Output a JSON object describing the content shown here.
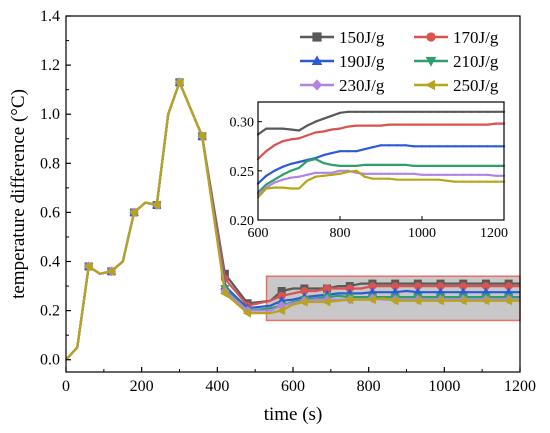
{
  "chart_data": [
    {
      "type": "line",
      "xlabel": "time (s)",
      "ylabel": "temperature difference (°C)",
      "xlim": [
        0,
        1200
      ],
      "ylim": [
        -0.05,
        1.4
      ],
      "xticks": [
        0,
        200,
        400,
        600,
        800,
        1000,
        1200
      ],
      "yticks": [
        0.0,
        0.2,
        0.4,
        0.6,
        0.8,
        1.0,
        1.2,
        1.4
      ],
      "xtick_labels": [
        "0",
        "200",
        "400",
        "600",
        "800",
        "1000",
        "1200"
      ],
      "ytick_labels": [
        "0.0",
        "0.2",
        "0.4",
        "0.6",
        "0.8",
        "1.0",
        "1.2",
        "1.4"
      ],
      "grid": false,
      "legend": "top-right",
      "highlight_region": {
        "x": [
          530,
          1200
        ],
        "y": [
          0.16,
          0.34
        ],
        "color": "#c8c8c8",
        "edge": "#e8706a"
      },
      "x_early": [
        0,
        30,
        60,
        90,
        120,
        150,
        180,
        210,
        240,
        270,
        300,
        360,
        420,
        480
      ],
      "x_late": [
        540,
        570,
        600,
        630,
        660,
        690,
        720,
        750,
        780,
        810,
        840,
        870,
        900,
        930,
        960,
        990,
        1020,
        1050,
        1080,
        1110,
        1140,
        1170,
        1200
      ],
      "series": [
        {
          "name": "150J/g",
          "color": "#595959",
          "marker": "square",
          "early": [
            0,
            0.05,
            0.38,
            0.35,
            0.36,
            0.4,
            0.6,
            0.64,
            0.63,
            1.0,
            1.13,
            0.91,
            0.35,
            0.23
          ],
          "late": [
            0.24,
            0.28,
            0.29,
            0.29,
            0.29,
            0.29,
            0.3,
            0.3,
            0.31,
            0.31,
            0.31,
            0.31,
            0.31,
            0.31,
            0.31,
            0.31,
            0.31,
            0.31,
            0.31,
            0.31,
            0.31,
            0.31,
            0.31
          ]
        },
        {
          "name": "170J/g",
          "color": "#d9534f",
          "marker": "circle",
          "early": [
            0,
            0.05,
            0.38,
            0.35,
            0.36,
            0.4,
            0.6,
            0.64,
            0.63,
            1.0,
            1.13,
            0.91,
            0.33,
            0.22
          ],
          "late": [
            0.24,
            0.26,
            0.27,
            0.28,
            0.28,
            0.29,
            0.29,
            0.29,
            0.29,
            0.3,
            0.3,
            0.3,
            0.3,
            0.3,
            0.3,
            0.3,
            0.3,
            0.3,
            0.3,
            0.3,
            0.3,
            0.3,
            0.3
          ]
        },
        {
          "name": "190J/g",
          "color": "#2a5bd7",
          "marker": "triangle-up",
          "early": [
            0,
            0.05,
            0.38,
            0.35,
            0.36,
            0.4,
            0.6,
            0.64,
            0.63,
            1.0,
            1.13,
            0.91,
            0.3,
            0.21
          ],
          "late": [
            0.22,
            0.24,
            0.245,
            0.255,
            0.26,
            0.265,
            0.27,
            0.27,
            0.27,
            0.275,
            0.275,
            0.275,
            0.28,
            0.275,
            0.275,
            0.275,
            0.275,
            0.275,
            0.275,
            0.275,
            0.275,
            0.275,
            0.275
          ]
        },
        {
          "name": "210J/g",
          "color": "#2e9e6a",
          "marker": "triangle-down",
          "early": [
            0,
            0.05,
            0.38,
            0.35,
            0.36,
            0.4,
            0.6,
            0.64,
            0.63,
            1.0,
            1.13,
            0.91,
            0.29,
            0.2
          ],
          "late": [
            0.21,
            0.22,
            0.235,
            0.245,
            0.25,
            0.255,
            0.26,
            0.255,
            0.255,
            0.255,
            0.255,
            0.255,
            0.255,
            0.255,
            0.255,
            0.255,
            0.255,
            0.255,
            0.255,
            0.255,
            0.255,
            0.255,
            0.255
          ]
        },
        {
          "name": "230J/g",
          "color": "#b184e0",
          "marker": "diamond",
          "early": [
            0,
            0.05,
            0.38,
            0.35,
            0.36,
            0.4,
            0.6,
            0.64,
            0.63,
            1.0,
            1.13,
            0.91,
            0.28,
            0.2
          ],
          "late": [
            0.2,
            0.22,
            0.23,
            0.24,
            0.245,
            0.245,
            0.245,
            0.245,
            0.245,
            0.25,
            0.245,
            0.245,
            0.245,
            0.245,
            0.245,
            0.245,
            0.245,
            0.245,
            0.245,
            0.245,
            0.245,
            0.245,
            0.245
          ]
        },
        {
          "name": "250J/g",
          "color": "#b8a31c",
          "marker": "triangle-left",
          "early": [
            0,
            0.05,
            0.38,
            0.35,
            0.36,
            0.4,
            0.6,
            0.64,
            0.63,
            1.0,
            1.13,
            0.91,
            0.27,
            0.19
          ],
          "late": [
            0.19,
            0.2,
            0.225,
            0.235,
            0.235,
            0.235,
            0.24,
            0.245,
            0.245,
            0.245,
            0.25,
            0.24,
            0.24,
            0.24,
            0.24,
            0.24,
            0.24,
            0.24,
            0.24,
            0.24,
            0.24,
            0.24,
            0.24
          ]
        }
      ]
    },
    {
      "type": "line",
      "role": "inset",
      "xlim": [
        600,
        1200
      ],
      "ylim": [
        0.2,
        0.32
      ],
      "xticks": [
        600,
        800,
        1000,
        1200
      ],
      "yticks": [
        0.2,
        0.25,
        0.3
      ],
      "xtick_labels": [
        "600",
        "800",
        "1000",
        "1200"
      ],
      "ytick_labels": [
        "0.20",
        "0.25",
        "0.30"
      ],
      "grid": false,
      "x": [
        600,
        620,
        640,
        660,
        680,
        700,
        720,
        740,
        760,
        780,
        800,
        820,
        840,
        860,
        880,
        900,
        920,
        940,
        960,
        980,
        1000,
        1020,
        1040,
        1060,
        1080,
        1100,
        1120,
        1140,
        1160,
        1180,
        1200
      ],
      "series": [
        {
          "name": "150J/g",
          "color": "#595959",
          "values": [
            0.287,
            0.293,
            0.293,
            0.293,
            0.292,
            0.291,
            0.296,
            0.3,
            0.303,
            0.306,
            0.309,
            0.31,
            0.31,
            0.31,
            0.31,
            0.31,
            0.31,
            0.31,
            0.31,
            0.31,
            0.31,
            0.31,
            0.31,
            0.31,
            0.31,
            0.31,
            0.31,
            0.31,
            0.31,
            0.31,
            0.31
          ]
        },
        {
          "name": "170J/g",
          "color": "#d9534f",
          "values": [
            0.262,
            0.27,
            0.276,
            0.28,
            0.282,
            0.283,
            0.286,
            0.289,
            0.29,
            0.292,
            0.293,
            0.295,
            0.296,
            0.296,
            0.296,
            0.296,
            0.297,
            0.297,
            0.297,
            0.297,
            0.297,
            0.297,
            0.297,
            0.297,
            0.297,
            0.297,
            0.297,
            0.297,
            0.297,
            0.298,
            0.298
          ]
        },
        {
          "name": "190J/g",
          "color": "#2a5bd7",
          "values": [
            0.237,
            0.245,
            0.25,
            0.254,
            0.257,
            0.259,
            0.261,
            0.263,
            0.266,
            0.268,
            0.27,
            0.27,
            0.27,
            0.272,
            0.274,
            0.276,
            0.276,
            0.276,
            0.276,
            0.275,
            0.275,
            0.275,
            0.275,
            0.275,
            0.275,
            0.275,
            0.275,
            0.275,
            0.275,
            0.275,
            0.275
          ]
        },
        {
          "name": "210J/g",
          "color": "#2e9e6a",
          "values": [
            0.228,
            0.236,
            0.241,
            0.246,
            0.25,
            0.253,
            0.26,
            0.262,
            0.258,
            0.256,
            0.255,
            0.255,
            0.255,
            0.256,
            0.256,
            0.256,
            0.256,
            0.256,
            0.256,
            0.255,
            0.255,
            0.255,
            0.255,
            0.255,
            0.255,
            0.255,
            0.255,
            0.255,
            0.255,
            0.255,
            0.255
          ]
        },
        {
          "name": "230J/g",
          "color": "#b184e0",
          "values": [
            0.226,
            0.233,
            0.238,
            0.241,
            0.243,
            0.244,
            0.246,
            0.248,
            0.248,
            0.248,
            0.25,
            0.25,
            0.248,
            0.247,
            0.247,
            0.247,
            0.247,
            0.247,
            0.247,
            0.247,
            0.246,
            0.246,
            0.246,
            0.246,
            0.246,
            0.246,
            0.246,
            0.246,
            0.246,
            0.245,
            0.245
          ]
        },
        {
          "name": "250J/g",
          "color": "#b8a31c",
          "values": [
            0.223,
            0.232,
            0.233,
            0.233,
            0.232,
            0.232,
            0.24,
            0.244,
            0.245,
            0.246,
            0.247,
            0.249,
            0.25,
            0.244,
            0.242,
            0.242,
            0.242,
            0.241,
            0.241,
            0.241,
            0.241,
            0.241,
            0.241,
            0.24,
            0.239,
            0.239,
            0.239,
            0.239,
            0.239,
            0.239,
            0.239
          ]
        }
      ]
    }
  ]
}
